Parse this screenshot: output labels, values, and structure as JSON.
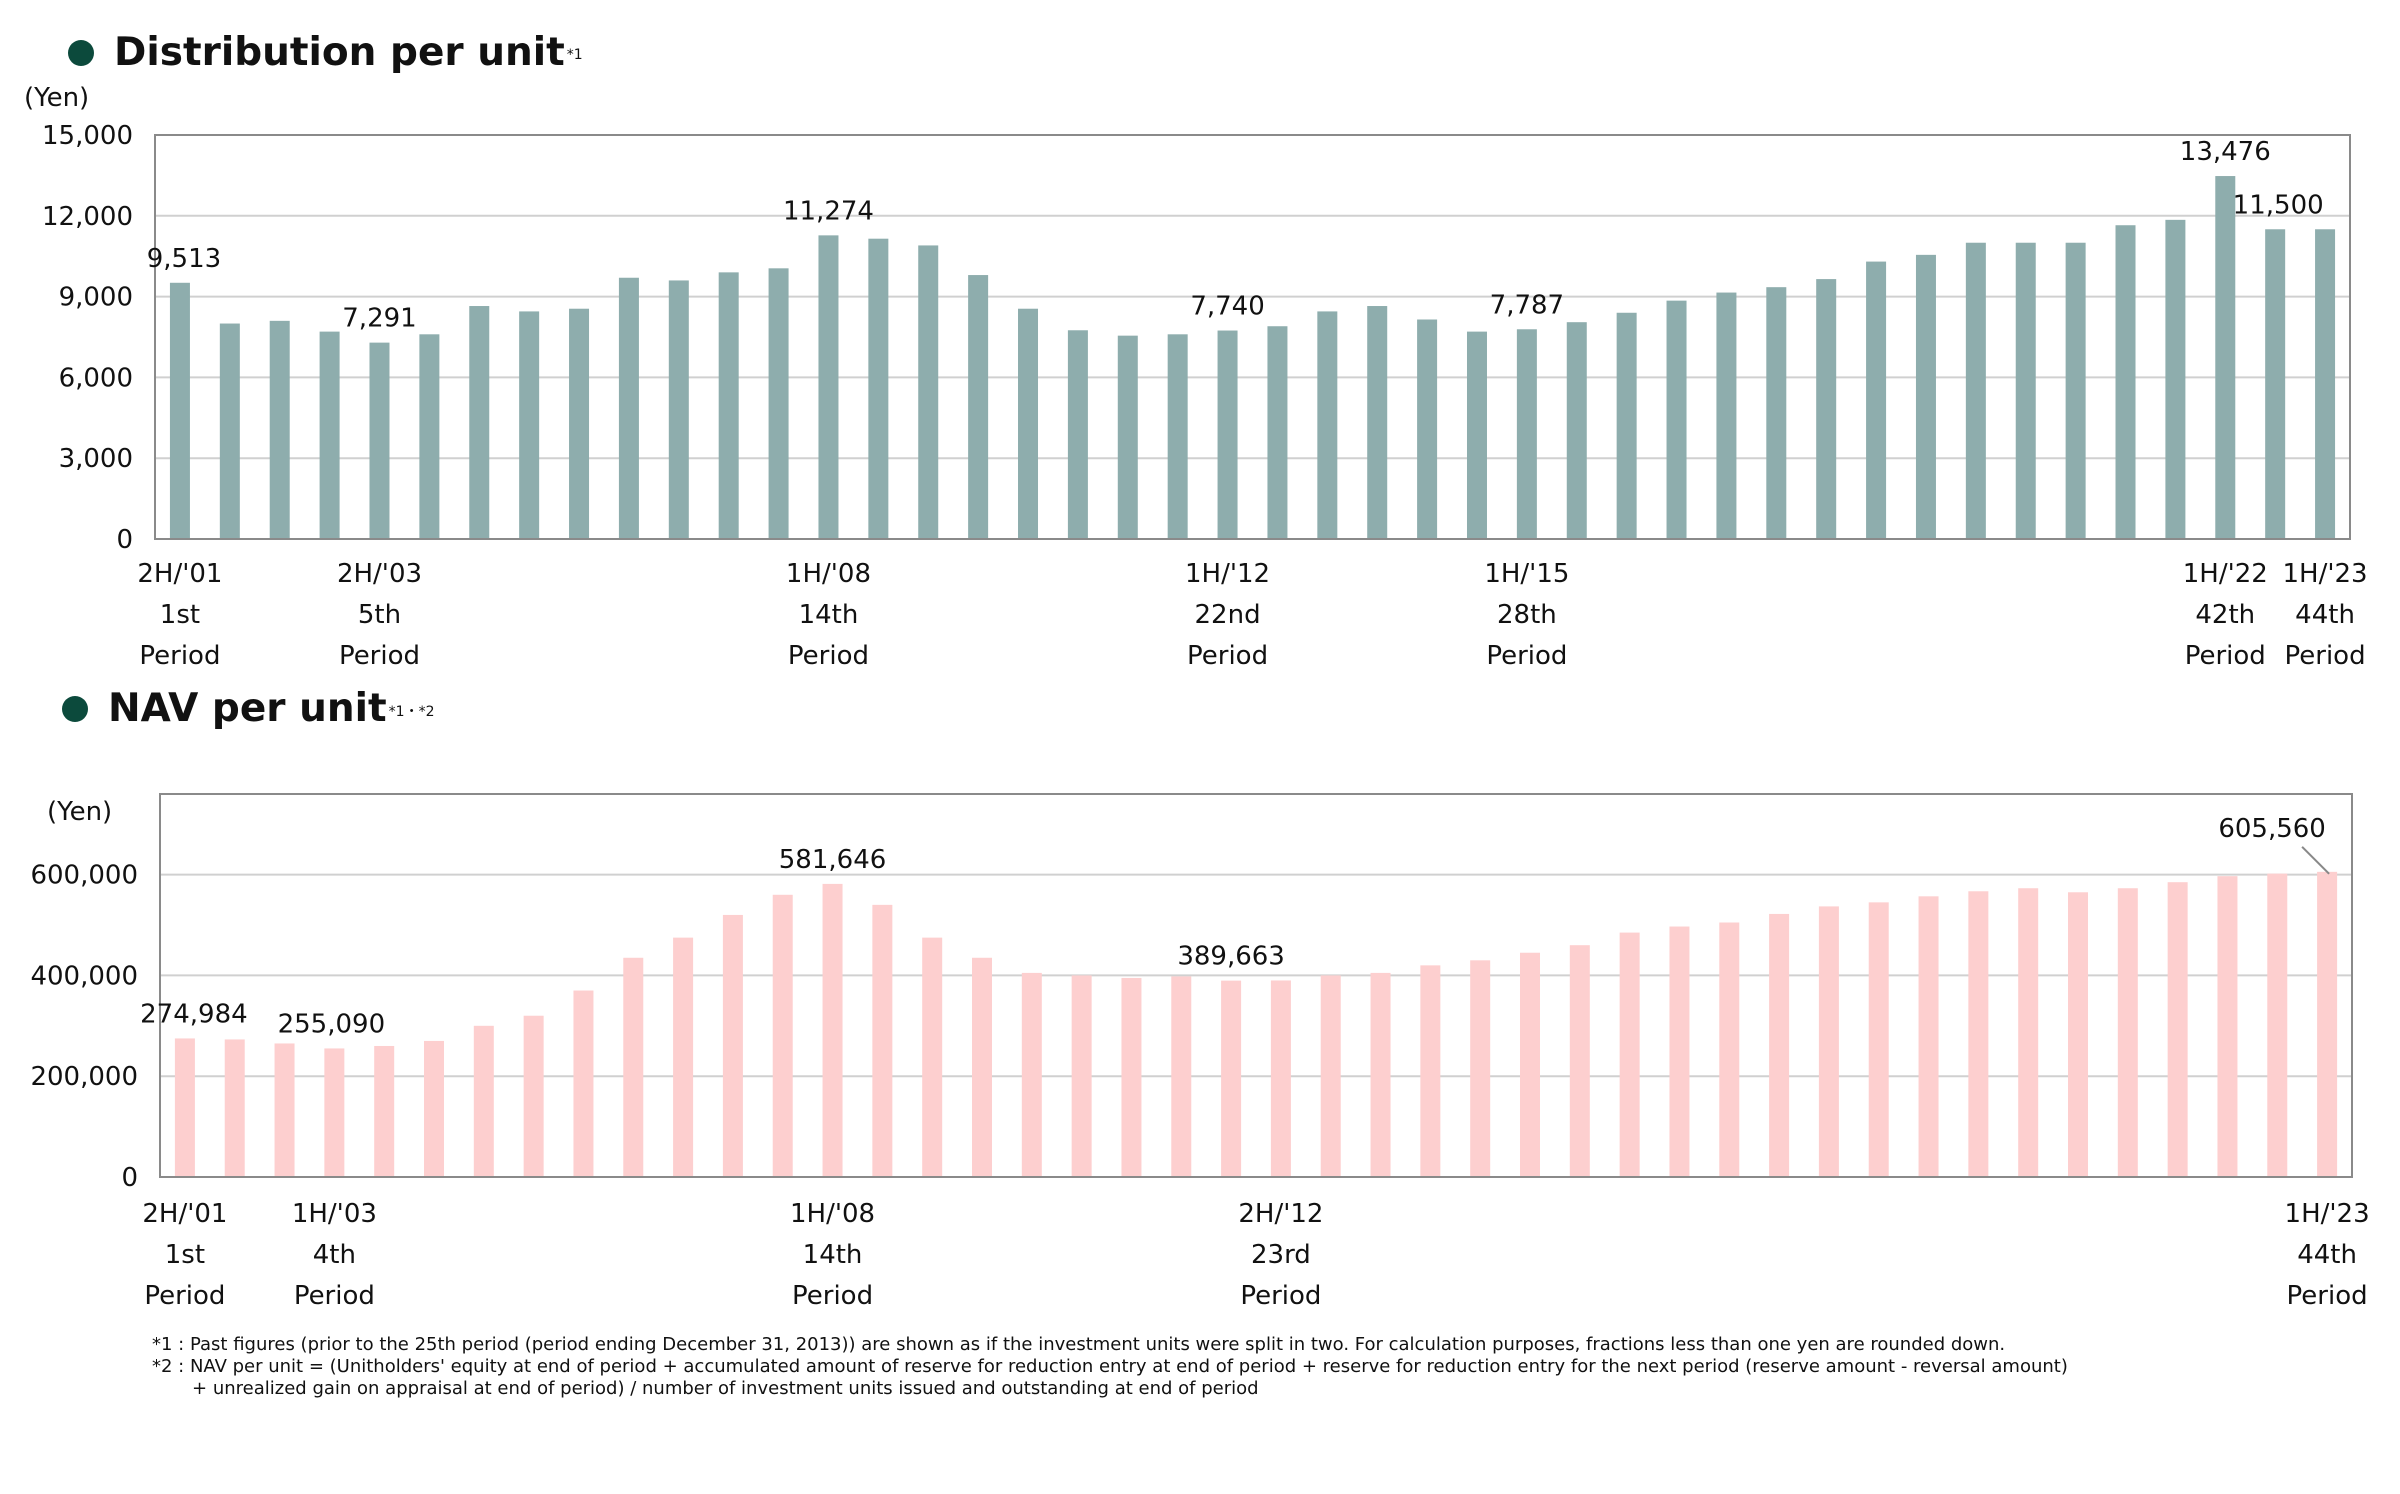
{
  "distribution": {
    "title": "Distribution per unit",
    "title_note": "*1"
  },
  "nav": {
    "title": "NAV per unit",
    "title_note": "*1・*2"
  },
  "footnotes": [
    "*1 : Past figures (prior to the 25th period (period ending December 31, 2013)) are shown as if the investment units were split in two. For calculation purposes, fractions less than one yen are rounded down.",
    "*2 : NAV per unit = (Unitholders' equity at end of period + accumulated amount of reserve for reduction entry at end of period + reserve for reduction entry for the next period (reserve amount - reversal amount)",
    "       + unrealized gain on appraisal at end of period) / number of investment units issued and outstanding at end of period"
  ],
  "chart_data": [
    {
      "type": "bar",
      "name": "distribution",
      "title": "Distribution per unit",
      "ylabel": "(Yen)",
      "ylim": [
        0,
        15000
      ],
      "yticks": [
        0,
        3000,
        6000,
        9000,
        12000,
        15000
      ],
      "ytick_labels": [
        "0",
        "3,000",
        "6,000",
        "9,000",
        "12,000",
        "15,000"
      ],
      "grid": true,
      "bar_color": "#8eadad",
      "values": [
        9513,
        8000,
        8100,
        7700,
        7291,
        7600,
        8650,
        8450,
        8550,
        9700,
        9600,
        9900,
        10050,
        11274,
        11150,
        10900,
        9800,
        8550,
        7750,
        7550,
        7600,
        7740,
        7900,
        8450,
        8650,
        8150,
        7700,
        7787,
        8050,
        8400,
        8850,
        9150,
        9350,
        9650,
        10300,
        10550,
        11000,
        11000,
        11000,
        11650,
        11850,
        13476,
        11500,
        11500
      ],
      "value_labels": [
        {
          "index": 0,
          "text": "9,513"
        },
        {
          "index": 4,
          "text": "7,291"
        },
        {
          "index": 13,
          "text": "11,274"
        },
        {
          "index": 21,
          "text": "7,740"
        },
        {
          "index": 27,
          "text": "7,787"
        },
        {
          "index": 41,
          "text": "13,476"
        },
        {
          "index": 42,
          "text": "11,500"
        }
      ],
      "category_labels": [
        {
          "index": 0,
          "lines": [
            "2H/'01",
            "1st",
            "Period"
          ]
        },
        {
          "index": 4,
          "lines": [
            "2H/'03",
            "5th",
            "Period"
          ]
        },
        {
          "index": 13,
          "lines": [
            "1H/'08",
            "14th",
            "Period"
          ]
        },
        {
          "index": 21,
          "lines": [
            "1H/'12",
            "22nd",
            "Period"
          ]
        },
        {
          "index": 27,
          "lines": [
            "1H/'15",
            "28th",
            "Period"
          ]
        },
        {
          "index": 41,
          "lines": [
            "1H/'22",
            "42th",
            "Period"
          ]
        },
        {
          "index": 43,
          "lines": [
            "1H/'23",
            "44th",
            "Period"
          ]
        }
      ]
    },
    {
      "type": "bar",
      "name": "nav",
      "title": "NAV per unit",
      "ylabel": "(Yen)",
      "ylim": [
        0,
        760000
      ],
      "yticks": [
        0,
        200000,
        400000,
        600000
      ],
      "ytick_labels": [
        "0",
        "200,000",
        "400,000",
        "600,000"
      ],
      "grid": true,
      "bar_color": "#fdcfcf",
      "values": [
        274984,
        273000,
        265000,
        255090,
        260000,
        270000,
        300000,
        320000,
        370000,
        435000,
        475000,
        520000,
        560000,
        581646,
        540000,
        475000,
        435000,
        405000,
        400000,
        395000,
        398000,
        389663,
        390000,
        400000,
        405000,
        420000,
        430000,
        445000,
        460000,
        485000,
        497000,
        505000,
        522000,
        537000,
        545000,
        557000,
        567000,
        573000,
        565000,
        573000,
        585000,
        597000,
        602000,
        605560
      ],
      "value_labels": [
        {
          "index": 0,
          "text": "274,984"
        },
        {
          "index": 3,
          "text": "255,090"
        },
        {
          "index": 13,
          "text": "581,646"
        },
        {
          "index": 21,
          "text": "389,663"
        },
        {
          "index": 43,
          "text": "605,560"
        }
      ],
      "category_labels": [
        {
          "index": 0,
          "lines": [
            "2H/'01",
            "1st",
            "Period"
          ]
        },
        {
          "index": 3,
          "lines": [
            "1H/'03",
            "4th",
            "Period"
          ]
        },
        {
          "index": 13,
          "lines": [
            "1H/'08",
            "14th",
            "Period"
          ]
        },
        {
          "index": 22,
          "lines": [
            "2H/'12",
            "23rd",
            "Period"
          ]
        },
        {
          "index": 43,
          "lines": [
            "1H/'23",
            "44th",
            "Period"
          ]
        }
      ]
    }
  ]
}
